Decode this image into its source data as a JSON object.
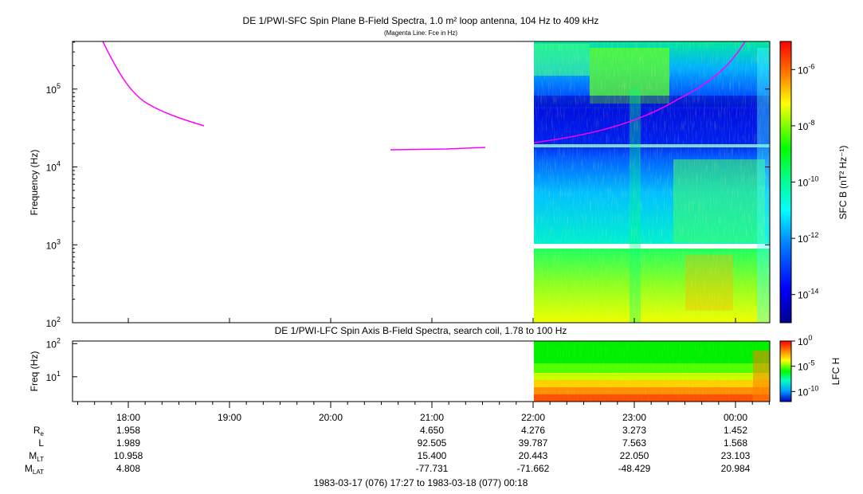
{
  "chart_data": [
    {
      "type": "heatmap",
      "title": "DE 1/PWI-SFC  Spin Plane B-Field Spectra, 1.0 m² loop antenna, 104 Hz to 409 kHz",
      "subtitle": "(Magenta Line: Fce in Hz)",
      "ylabel": "Frequency (Hz)",
      "yscale": "log",
      "ylim": [
        100,
        409000
      ],
      "yticks": [
        {
          "value": 100,
          "label": "10",
          "exp": "2"
        },
        {
          "value": 1000,
          "label": "10",
          "exp": "3"
        },
        {
          "value": 10000,
          "label": "10",
          "exp": "4"
        },
        {
          "value": 100000,
          "label": "10",
          "exp": "5"
        }
      ],
      "xlim": [
        "1983-03-17 17:27",
        "1983-03-18 00:18"
      ],
      "data_start": "22:00",
      "data_gap_hz": [
        900,
        1050
      ],
      "colorbar": {
        "label": "SFC B (nT² Hz⁻¹)",
        "scale": "log",
        "range": [
          1e-15,
          1e-05
        ],
        "ticks": [
          {
            "value": 1e-06,
            "label": "10",
            "exp": "-6"
          },
          {
            "value": 1e-08,
            "label": "10",
            "exp": "-8"
          },
          {
            "value": 1e-10,
            "label": "10",
            "exp": "-10"
          },
          {
            "value": 1e-12,
            "label": "10",
            "exp": "-12"
          },
          {
            "value": 1e-14,
            "label": "10",
            "exp": "-14"
          }
        ]
      },
      "line_series": [
        {
          "name": "Fce",
          "color": "#ff00ff",
          "segments": [
            [
              [
                "17:54",
                409000
              ],
              [
                "18:00",
                200000
              ],
              [
                "18:08",
                120000
              ],
              [
                "18:15",
                80000
              ],
              [
                "18:25",
                58000
              ],
              [
                "18:35",
                45000
              ],
              [
                "18:45",
                37000
              ],
              [
                "18:44",
                33000
              ]
            ],
            [
              [
                "20:36",
                16000
              ],
              [
                "21:00",
                16200
              ],
              [
                "21:30",
                17500
              ]
            ],
            [
              [
                "22:00",
                20000
              ],
              [
                "22:30",
                24000
              ],
              [
                "23:00",
                33000
              ],
              [
                "23:30",
                60000
              ],
              [
                "23:55",
                150000
              ],
              [
                "00:05",
                409000
              ]
            ]
          ]
        }
      ]
    },
    {
      "type": "heatmap",
      "title": "DE 1/PWI-LFC  Spin Axis B-Field Spectra, search coil, 1.78 to 100 Hz",
      "ylabel": "Freq (Hz)",
      "yscale": "log",
      "ylim": [
        1.78,
        120
      ],
      "yticks": [
        {
          "value": 10,
          "label": "10",
          "exp": "1"
        },
        {
          "value": 100,
          "label": "10",
          "exp": "2"
        }
      ],
      "data_start": "22:00",
      "colorbar": {
        "label": "LFC H",
        "scale": "log",
        "range": [
          1e-12,
          1
        ],
        "ticks": [
          {
            "value": 1,
            "label": "10",
            "exp": "0"
          },
          {
            "value": 1e-05,
            "label": "10",
            "exp": "-5"
          },
          {
            "value": 1e-10,
            "label": "10",
            "exp": "-10"
          }
        ]
      }
    }
  ],
  "xaxis": {
    "ticks": [
      "18:00",
      "19:00",
      "20:00",
      "21:00",
      "22:00",
      "23:00",
      "00:00"
    ]
  },
  "ephemeris": {
    "rows": [
      {
        "label": "R",
        "sub": "e",
        "values": [
          "1.958",
          "",
          "",
          "4.650",
          "4.276",
          "3.273",
          "1.452"
        ]
      },
      {
        "label": "L",
        "sub": "",
        "values": [
          "1.989",
          "",
          "",
          "92.505",
          "39.787",
          "7.563",
          "1.568"
        ]
      },
      {
        "label": "M",
        "sub": "LT",
        "values": [
          "10.958",
          "",
          "",
          "15.400",
          "20.443",
          "22.050",
          "23.103"
        ]
      },
      {
        "label": "M",
        "sub": "LAT",
        "values": [
          "4.808",
          "",
          "",
          "-77.731",
          "-71.662",
          "-48.429",
          "20.984"
        ]
      }
    ]
  },
  "time_range": "1983-03-17 (076) 17:27 to 1983-03-18 (077) 00:18",
  "colors": {
    "fce_line": "#ff00ff",
    "spectrogram_scale": [
      "#00008c",
      "#0000ff",
      "#0080ff",
      "#00ffff",
      "#00ff80",
      "#00ff00",
      "#80ff00",
      "#ffff00",
      "#ff8000",
      "#ff0000"
    ]
  }
}
